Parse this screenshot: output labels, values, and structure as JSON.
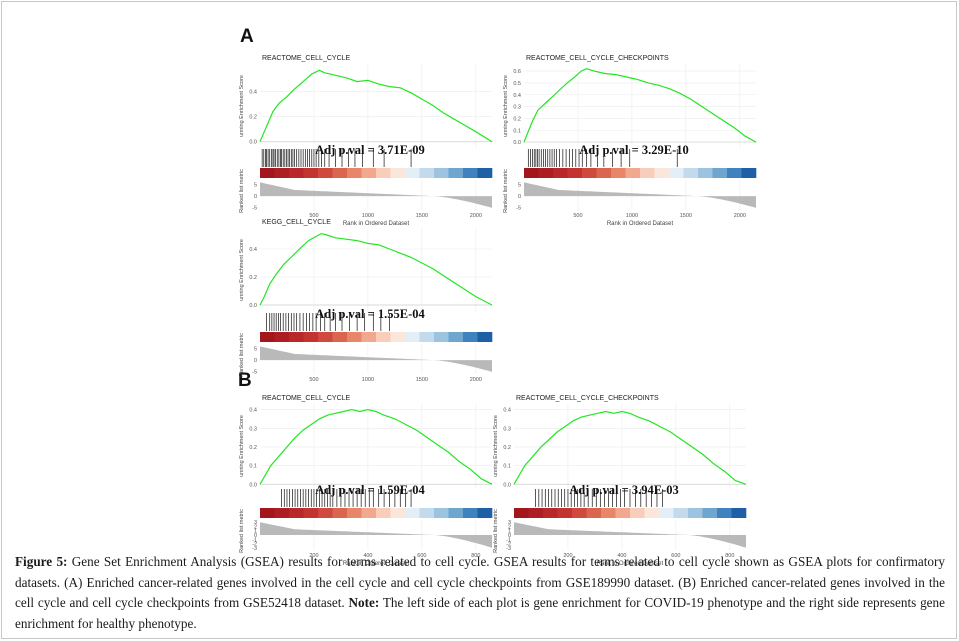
{
  "panels": {
    "a_label": "A",
    "b_label": "B"
  },
  "caption": {
    "label": "Figure 5:",
    "text": " Gene Set Enrichment Analysis (GSEA) results for terms related to cell cycle. GSEA results for terms related to cell cycle shown as GSEA plots for confirmatory datasets. (A) Enriched cancer-related genes involved in the cell cycle and cell cycle checkpoints from GSE189990 dataset. (B) Enriched cancer-related genes involved in the cell cycle and cell cycle checkpoints from GSE52418 dataset. ",
    "note_label": "Note:",
    "note_text": " The left side of each plot is gene enrichment for COVID-19 phenotype and the right side represents gene enrichment for healthy phenotype."
  },
  "chart_data": [
    {
      "type": "line",
      "title": "REACTOME_CELL_CYCLE",
      "annotation": "Adj p.val = 3.71E-09",
      "ylabel_top": "unning Enrichment Score",
      "ylabel_bottom": "Ranked list metric",
      "xlabel": "Rank in Ordered Dataset",
      "xlim": [
        0,
        2150
      ],
      "ylim": [
        -0.05,
        0.62
      ],
      "x_ticks": [
        500,
        1000,
        1500,
        2000
      ],
      "y_ticks": [
        0.0,
        0.2,
        0.4
      ],
      "metric_ticks": [
        5,
        0,
        -5
      ],
      "metric_lim": [
        -6,
        7
      ],
      "x": [
        0,
        40,
        80,
        120,
        180,
        250,
        320,
        400,
        480,
        550,
        600,
        700,
        800,
        900,
        1000,
        1100,
        1200,
        1300,
        1400,
        1500,
        1600,
        1700,
        1800,
        1900,
        2000,
        2150
      ],
      "y": [
        0.0,
        0.08,
        0.16,
        0.24,
        0.31,
        0.36,
        0.42,
        0.48,
        0.54,
        0.57,
        0.55,
        0.53,
        0.51,
        0.48,
        0.49,
        0.46,
        0.44,
        0.43,
        0.39,
        0.34,
        0.29,
        0.23,
        0.18,
        0.13,
        0.08,
        0.0
      ],
      "hits": [
        20,
        35,
        50,
        60,
        75,
        90,
        105,
        120,
        130,
        145,
        160,
        175,
        190,
        200,
        215,
        230,
        245,
        260,
        275,
        290,
        305,
        320,
        340,
        360,
        380,
        400,
        420,
        440,
        460,
        480,
        500,
        520,
        545,
        570,
        600,
        640,
        700,
        760,
        820,
        880,
        950,
        1050,
        1150,
        1400
      ]
    },
    {
      "type": "line",
      "title": "REACTOME_CELL_CYCLE_CHECKPOINTS",
      "annotation": "Adj p.val = 3.29E-10",
      "ylabel_top": "unning Enrichment Score",
      "ylabel_bottom": "Ranked list metric",
      "xlabel": "Rank in Ordered Dataset",
      "xlim": [
        0,
        2150
      ],
      "ylim": [
        -0.05,
        0.66
      ],
      "x_ticks": [
        500,
        1000,
        1500,
        2000
      ],
      "y_ticks": [
        0.0,
        0.1,
        0.2,
        0.3,
        0.4,
        0.5,
        0.6
      ],
      "metric_ticks": [
        5,
        0,
        -5
      ],
      "metric_lim": [
        -6,
        7
      ],
      "x": [
        0,
        40,
        80,
        130,
        200,
        260,
        330,
        400,
        470,
        530,
        580,
        650,
        750,
        850,
        950,
        1050,
        1150,
        1250,
        1350,
        1450,
        1550,
        1650,
        1750,
        1850,
        1950,
        2050,
        2150
      ],
      "y": [
        0.0,
        0.09,
        0.18,
        0.27,
        0.33,
        0.38,
        0.44,
        0.5,
        0.55,
        0.6,
        0.62,
        0.6,
        0.58,
        0.57,
        0.55,
        0.53,
        0.5,
        0.48,
        0.45,
        0.41,
        0.36,
        0.3,
        0.24,
        0.18,
        0.12,
        0.05,
        0.0
      ],
      "hits": [
        40,
        60,
        80,
        95,
        110,
        125,
        140,
        160,
        180,
        200,
        220,
        240,
        260,
        280,
        300,
        330,
        360,
        390,
        420,
        450,
        480,
        510,
        540,
        580,
        620,
        680,
        740,
        820,
        900,
        980,
        1420
      ]
    },
    {
      "type": "line",
      "title": "KEGG_CELL_CYCLE",
      "annotation": "Adj p.val = 1.55E-04",
      "ylabel_top": "unning Enrichment Score",
      "ylabel_bottom": "Ranked list metric",
      "xlabel": "",
      "xlim": [
        0,
        2150
      ],
      "ylim": [
        -0.05,
        0.55
      ],
      "x_ticks": [
        500,
        1000,
        1500,
        2000
      ],
      "y_ticks": [
        0.0,
        0.2,
        0.4
      ],
      "metric_ticks": [
        5,
        0,
        -5
      ],
      "metric_lim": [
        -6,
        7
      ],
      "x": [
        0,
        40,
        90,
        150,
        220,
        300,
        380,
        450,
        520,
        570,
        620,
        700,
        800,
        900,
        1000,
        1100,
        1200,
        1300,
        1400,
        1500,
        1600,
        1700,
        1800,
        1900,
        2000,
        2150
      ],
      "y": [
        0.0,
        0.06,
        0.15,
        0.22,
        0.29,
        0.35,
        0.41,
        0.46,
        0.49,
        0.51,
        0.5,
        0.48,
        0.47,
        0.46,
        0.44,
        0.43,
        0.4,
        0.37,
        0.34,
        0.3,
        0.26,
        0.21,
        0.16,
        0.11,
        0.06,
        0.0
      ],
      "hits": [
        60,
        90,
        110,
        130,
        150,
        170,
        190,
        215,
        240,
        265,
        290,
        315,
        340,
        370,
        400,
        430,
        460,
        490,
        520,
        560,
        600,
        650,
        700,
        760,
        830,
        900,
        970,
        1050,
        1120,
        1200
      ]
    },
    {
      "type": "line",
      "title": "REACTOME_CELL_CYCLE",
      "annotation": "Adj p.val = 1.59E-04",
      "ylabel_top": "unning Enrichment Score",
      "ylabel_bottom": "Ranked list metric",
      "xlabel": "Rank in Ordered Dataset",
      "xlim": [
        0,
        860
      ],
      "ylim": [
        -0.02,
        0.43
      ],
      "x_ticks": [
        200,
        400,
        600,
        800
      ],
      "y_ticks": [
        0.0,
        0.1,
        0.2,
        0.3,
        0.4
      ],
      "metric_ticks": [
        3,
        2,
        1,
        0,
        -1,
        -2,
        -3
      ],
      "metric_lim": [
        -3.5,
        3.5
      ],
      "x": [
        0,
        20,
        40,
        70,
        100,
        130,
        160,
        190,
        220,
        250,
        280,
        310,
        340,
        370,
        400,
        430,
        460,
        500,
        540,
        580,
        620,
        660,
        700,
        740,
        780,
        820,
        860
      ],
      "y": [
        0.0,
        0.05,
        0.1,
        0.15,
        0.2,
        0.25,
        0.29,
        0.32,
        0.35,
        0.37,
        0.38,
        0.39,
        0.4,
        0.39,
        0.4,
        0.39,
        0.37,
        0.35,
        0.32,
        0.29,
        0.25,
        0.21,
        0.17,
        0.12,
        0.08,
        0.03,
        0.0
      ],
      "hits": [
        80,
        90,
        100,
        110,
        120,
        130,
        140,
        150,
        160,
        170,
        180,
        190,
        200,
        210,
        220,
        230,
        240,
        250,
        260,
        270,
        285,
        300,
        315,
        330,
        345,
        360,
        375,
        390,
        405,
        420,
        440,
        460,
        480,
        500,
        520,
        540,
        560
      ]
    },
    {
      "type": "line",
      "title": "REACTOME_CELL_CYCLE_CHECKPOINTS",
      "annotation": "Adj p.val = 3.94E-03",
      "ylabel_top": "unning Enrichment Score",
      "ylabel_bottom": "Ranked list metric",
      "xlabel": "Rank in Ordered Dataset",
      "xlim": [
        0,
        860
      ],
      "ylim": [
        -0.02,
        0.43
      ],
      "x_ticks": [
        200,
        400,
        600,
        800
      ],
      "y_ticks": [
        0.0,
        0.1,
        0.2,
        0.3,
        0.4
      ],
      "metric_ticks": [
        3,
        2,
        1,
        0,
        -1,
        -2,
        -3
      ],
      "metric_lim": [
        -3.5,
        3.5
      ],
      "x": [
        0,
        20,
        40,
        70,
        100,
        130,
        160,
        190,
        220,
        250,
        280,
        310,
        340,
        370,
        400,
        430,
        460,
        500,
        540,
        580,
        620,
        660,
        700,
        740,
        780,
        820,
        860
      ],
      "y": [
        0.0,
        0.05,
        0.1,
        0.15,
        0.2,
        0.24,
        0.28,
        0.31,
        0.34,
        0.36,
        0.37,
        0.38,
        0.39,
        0.38,
        0.39,
        0.38,
        0.36,
        0.34,
        0.31,
        0.28,
        0.24,
        0.2,
        0.16,
        0.11,
        0.07,
        0.02,
        0.0
      ],
      "hits": [
        80,
        92,
        104,
        116,
        128,
        140,
        152,
        164,
        176,
        188,
        200,
        212,
        224,
        236,
        248,
        260,
        275,
        290,
        305,
        320,
        335,
        350,
        365,
        380,
        395,
        410,
        430,
        450,
        470,
        490,
        510,
        530,
        550
      ]
    }
  ]
}
